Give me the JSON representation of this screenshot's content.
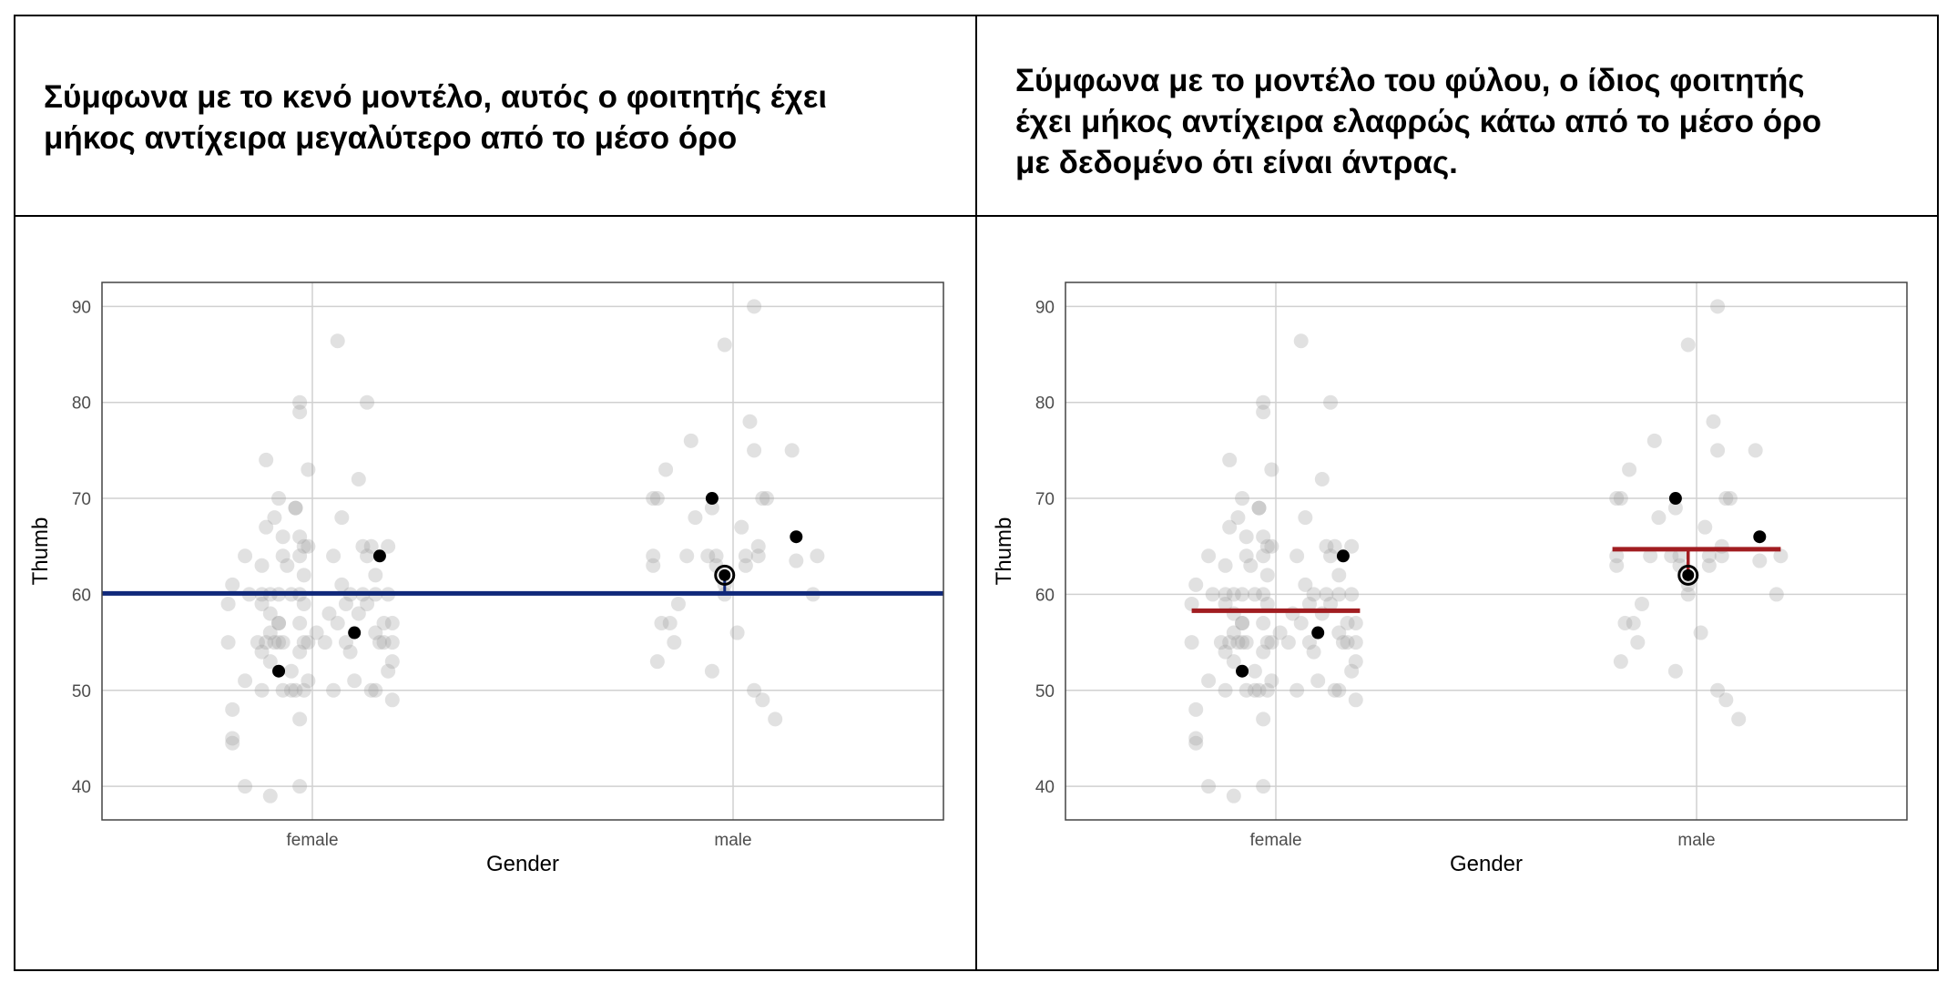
{
  "captions": {
    "left": [
      "Σύμφωνα με το κενό μοντέλο, αυτός ο φοιτητής έχει",
      "μήκος αντίχειρα μεγαλύτερο από το μέσο όρο"
    ],
    "right": [
      "Σύμφωνα με το μοντέλο του φύλου, ο ίδιος φοιτητής",
      "έχει μήκος αντίχειρα ελαφρώς κάτω από το μέσο όρο",
      "με δεδομένο ότι είναι άντρας."
    ]
  },
  "chart_data": [
    {
      "type": "scatter",
      "model": "empty",
      "xlabel": "Gender",
      "ylabel": "Thumb",
      "categories": [
        "female",
        "male"
      ],
      "yticks": [
        40,
        50,
        60,
        70,
        80,
        90
      ],
      "ylim": [
        36.5,
        92.5
      ],
      "grid": true,
      "colors": {
        "points": "#9a9a9a",
        "highlight": "#000000",
        "model_line": "#10287a"
      },
      "model_line": {
        "type": "grand_mean",
        "value": 60.1
      },
      "focus_point": {
        "category": "male",
        "jitter": -0.02,
        "y": 62
      },
      "highlight_points": [
        {
          "category": "female",
          "jitter": -0.08,
          "y": 52
        },
        {
          "category": "female",
          "jitter": 0.1,
          "y": 56
        },
        {
          "category": "female",
          "jitter": 0.16,
          "y": 64
        },
        {
          "category": "male",
          "jitter": -0.05,
          "y": 70
        },
        {
          "category": "male",
          "jitter": 0.15,
          "y": 66
        }
      ],
      "points": [
        {
          "category": "female",
          "jitter": 0.06,
          "y": 86.4
        },
        {
          "category": "female",
          "jitter": -0.03,
          "y": 80
        },
        {
          "category": "female",
          "jitter": -0.03,
          "y": 79
        },
        {
          "category": "female",
          "jitter": 0.13,
          "y": 80
        },
        {
          "category": "female",
          "jitter": -0.11,
          "y": 74
        },
        {
          "category": "female",
          "jitter": -0.01,
          "y": 73
        },
        {
          "category": "female",
          "jitter": 0.11,
          "y": 72
        },
        {
          "category": "female",
          "jitter": -0.08,
          "y": 70
        },
        {
          "category": "female",
          "jitter": -0.04,
          "y": 69
        },
        {
          "category": "female",
          "jitter": -0.04,
          "y": 69
        },
        {
          "category": "female",
          "jitter": -0.09,
          "y": 68
        },
        {
          "category": "female",
          "jitter": 0.07,
          "y": 68
        },
        {
          "category": "female",
          "jitter": -0.11,
          "y": 67
        },
        {
          "category": "female",
          "jitter": -0.07,
          "y": 66
        },
        {
          "category": "female",
          "jitter": -0.03,
          "y": 66
        },
        {
          "category": "female",
          "jitter": -0.02,
          "y": 65
        },
        {
          "category": "female",
          "jitter": -0.01,
          "y": 65
        },
        {
          "category": "female",
          "jitter": 0.12,
          "y": 65
        },
        {
          "category": "female",
          "jitter": 0.14,
          "y": 65
        },
        {
          "category": "female",
          "jitter": 0.18,
          "y": 65
        },
        {
          "category": "female",
          "jitter": -0.16,
          "y": 64
        },
        {
          "category": "female",
          "jitter": -0.07,
          "y": 64
        },
        {
          "category": "female",
          "jitter": -0.03,
          "y": 64
        },
        {
          "category": "female",
          "jitter": 0.05,
          "y": 64
        },
        {
          "category": "female",
          "jitter": 0.13,
          "y": 64
        },
        {
          "category": "female",
          "jitter": -0.12,
          "y": 63
        },
        {
          "category": "female",
          "jitter": -0.06,
          "y": 63
        },
        {
          "category": "female",
          "jitter": -0.02,
          "y": 62
        },
        {
          "category": "female",
          "jitter": 0.15,
          "y": 62
        },
        {
          "category": "female",
          "jitter": -0.19,
          "y": 61
        },
        {
          "category": "female",
          "jitter": 0.07,
          "y": 61
        },
        {
          "category": "female",
          "jitter": -0.15,
          "y": 60
        },
        {
          "category": "female",
          "jitter": -0.12,
          "y": 60
        },
        {
          "category": "female",
          "jitter": -0.1,
          "y": 60
        },
        {
          "category": "female",
          "jitter": -0.08,
          "y": 60
        },
        {
          "category": "female",
          "jitter": -0.05,
          "y": 60
        },
        {
          "category": "female",
          "jitter": -0.03,
          "y": 60
        },
        {
          "category": "female",
          "jitter": 0.09,
          "y": 60
        },
        {
          "category": "female",
          "jitter": 0.12,
          "y": 60
        },
        {
          "category": "female",
          "jitter": 0.15,
          "y": 60
        },
        {
          "category": "female",
          "jitter": 0.18,
          "y": 60
        },
        {
          "category": "female",
          "jitter": -0.2,
          "y": 59
        },
        {
          "category": "female",
          "jitter": -0.12,
          "y": 59
        },
        {
          "category": "female",
          "jitter": -0.02,
          "y": 59
        },
        {
          "category": "female",
          "jitter": 0.08,
          "y": 59
        },
        {
          "category": "female",
          "jitter": 0.13,
          "y": 59
        },
        {
          "category": "female",
          "jitter": -0.1,
          "y": 58
        },
        {
          "category": "female",
          "jitter": 0.04,
          "y": 58
        },
        {
          "category": "female",
          "jitter": 0.11,
          "y": 58
        },
        {
          "category": "female",
          "jitter": -0.08,
          "y": 57
        },
        {
          "category": "female",
          "jitter": -0.08,
          "y": 57
        },
        {
          "category": "female",
          "jitter": -0.03,
          "y": 57
        },
        {
          "category": "female",
          "jitter": 0.06,
          "y": 57
        },
        {
          "category": "female",
          "jitter": 0.17,
          "y": 57
        },
        {
          "category": "female",
          "jitter": 0.19,
          "y": 57
        },
        {
          "category": "female",
          "jitter": -0.1,
          "y": 56
        },
        {
          "category": "female",
          "jitter": 0.01,
          "y": 56
        },
        {
          "category": "female",
          "jitter": 0.15,
          "y": 56
        },
        {
          "category": "female",
          "jitter": -0.2,
          "y": 55
        },
        {
          "category": "female",
          "jitter": -0.13,
          "y": 55
        },
        {
          "category": "female",
          "jitter": -0.11,
          "y": 55
        },
        {
          "category": "female",
          "jitter": -0.09,
          "y": 55
        },
        {
          "category": "female",
          "jitter": -0.08,
          "y": 55
        },
        {
          "category": "female",
          "jitter": -0.07,
          "y": 55
        },
        {
          "category": "female",
          "jitter": -0.02,
          "y": 55
        },
        {
          "category": "female",
          "jitter": -0.01,
          "y": 55
        },
        {
          "category": "female",
          "jitter": 0.03,
          "y": 55
        },
        {
          "category": "female",
          "jitter": 0.08,
          "y": 55
        },
        {
          "category": "female",
          "jitter": 0.16,
          "y": 55
        },
        {
          "category": "female",
          "jitter": 0.17,
          "y": 55
        },
        {
          "category": "female",
          "jitter": 0.19,
          "y": 55
        },
        {
          "category": "female",
          "jitter": -0.12,
          "y": 54
        },
        {
          "category": "female",
          "jitter": -0.03,
          "y": 54
        },
        {
          "category": "female",
          "jitter": 0.09,
          "y": 54
        },
        {
          "category": "female",
          "jitter": -0.1,
          "y": 53
        },
        {
          "category": "female",
          "jitter": 0.19,
          "y": 53
        },
        {
          "category": "female",
          "jitter": -0.05,
          "y": 52
        },
        {
          "category": "female",
          "jitter": 0.18,
          "y": 52
        },
        {
          "category": "female",
          "jitter": -0.16,
          "y": 51
        },
        {
          "category": "female",
          "jitter": -0.01,
          "y": 51
        },
        {
          "category": "female",
          "jitter": 0.1,
          "y": 51
        },
        {
          "category": "female",
          "jitter": -0.12,
          "y": 50
        },
        {
          "category": "female",
          "jitter": -0.07,
          "y": 50
        },
        {
          "category": "female",
          "jitter": -0.05,
          "y": 50
        },
        {
          "category": "female",
          "jitter": -0.04,
          "y": 50
        },
        {
          "category": "female",
          "jitter": -0.02,
          "y": 50
        },
        {
          "category": "female",
          "jitter": 0.05,
          "y": 50
        },
        {
          "category": "female",
          "jitter": 0.14,
          "y": 50
        },
        {
          "category": "female",
          "jitter": 0.15,
          "y": 50
        },
        {
          "category": "female",
          "jitter": 0.19,
          "y": 49
        },
        {
          "category": "female",
          "jitter": -0.19,
          "y": 48
        },
        {
          "category": "female",
          "jitter": -0.03,
          "y": 47
        },
        {
          "category": "female",
          "jitter": -0.19,
          "y": 45
        },
        {
          "category": "female",
          "jitter": -0.19,
          "y": 44.5
        },
        {
          "category": "female",
          "jitter": -0.16,
          "y": 40
        },
        {
          "category": "female",
          "jitter": -0.03,
          "y": 40
        },
        {
          "category": "female",
          "jitter": -0.1,
          "y": 39
        },
        {
          "category": "male",
          "jitter": 0.05,
          "y": 90
        },
        {
          "category": "male",
          "jitter": -0.02,
          "y": 86
        },
        {
          "category": "male",
          "jitter": 0.04,
          "y": 78
        },
        {
          "category": "male",
          "jitter": -0.1,
          "y": 76
        },
        {
          "category": "male",
          "jitter": 0.05,
          "y": 75
        },
        {
          "category": "male",
          "jitter": 0.14,
          "y": 75
        },
        {
          "category": "male",
          "jitter": -0.16,
          "y": 73
        },
        {
          "category": "male",
          "jitter": -0.19,
          "y": 70
        },
        {
          "category": "male",
          "jitter": 0.07,
          "y": 70
        },
        {
          "category": "male",
          "jitter": -0.05,
          "y": 69
        },
        {
          "category": "male",
          "jitter": -0.18,
          "y": 70
        },
        {
          "category": "male",
          "jitter": 0.08,
          "y": 70
        },
        {
          "category": "male",
          "jitter": -0.09,
          "y": 68
        },
        {
          "category": "male",
          "jitter": 0.02,
          "y": 67
        },
        {
          "category": "male",
          "jitter": 0.06,
          "y": 65
        },
        {
          "category": "male",
          "jitter": -0.19,
          "y": 64
        },
        {
          "category": "male",
          "jitter": -0.11,
          "y": 64
        },
        {
          "category": "male",
          "jitter": -0.06,
          "y": 64
        },
        {
          "category": "male",
          "jitter": -0.04,
          "y": 64
        },
        {
          "category": "male",
          "jitter": 0.03,
          "y": 64
        },
        {
          "category": "male",
          "jitter": 0.06,
          "y": 64
        },
        {
          "category": "male",
          "jitter": 0.2,
          "y": 64
        },
        {
          "category": "male",
          "jitter": -0.19,
          "y": 63
        },
        {
          "category": "male",
          "jitter": -0.04,
          "y": 63
        },
        {
          "category": "male",
          "jitter": 0.03,
          "y": 63
        },
        {
          "category": "male",
          "jitter": 0.15,
          "y": 63.5
        },
        {
          "category": "male",
          "jitter": -0.02,
          "y": 61
        },
        {
          "category": "male",
          "jitter": -0.02,
          "y": 60
        },
        {
          "category": "male",
          "jitter": 0.19,
          "y": 60
        },
        {
          "category": "male",
          "jitter": -0.13,
          "y": 59
        },
        {
          "category": "male",
          "jitter": -0.15,
          "y": 57
        },
        {
          "category": "male",
          "jitter": -0.17,
          "y": 57
        },
        {
          "category": "male",
          "jitter": 0.01,
          "y": 56
        },
        {
          "category": "male",
          "jitter": -0.14,
          "y": 55
        },
        {
          "category": "male",
          "jitter": -0.18,
          "y": 53
        },
        {
          "category": "male",
          "jitter": -0.05,
          "y": 52
        },
        {
          "category": "male",
          "jitter": 0.05,
          "y": 50
        },
        {
          "category": "male",
          "jitter": 0.07,
          "y": 49
        },
        {
          "category": "male",
          "jitter": 0.1,
          "y": 47
        }
      ]
    },
    {
      "type": "scatter",
      "model": "gender",
      "xlabel": "Gender",
      "ylabel": "Thumb",
      "categories": [
        "female",
        "male"
      ],
      "yticks": [
        40,
        50,
        60,
        70,
        80,
        90
      ],
      "ylim": [
        36.5,
        92.5
      ],
      "grid": true,
      "colors": {
        "points": "#9a9a9a",
        "highlight": "#000000",
        "model_line": "#a11d21"
      },
      "model_line": {
        "type": "group_means",
        "values": [
          58.3,
          64.7
        ],
        "halfwidth": 0.2
      },
      "focus_point": {
        "category": "male",
        "jitter": -0.02,
        "y": 62
      },
      "reuse_points_from": 0
    }
  ]
}
